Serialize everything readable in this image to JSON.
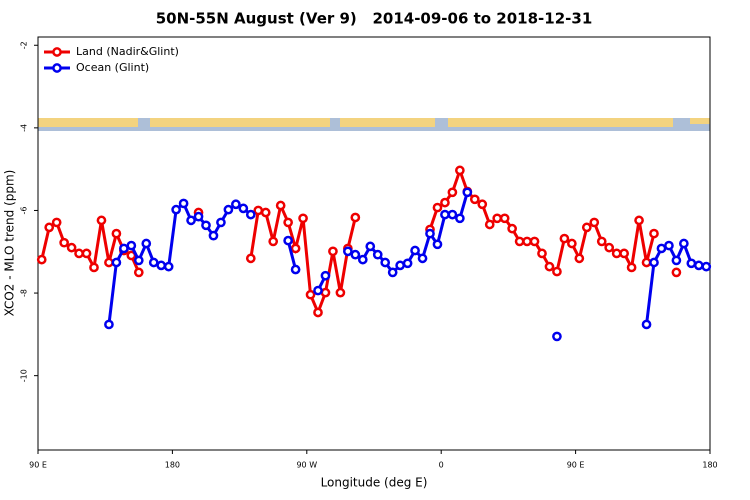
{
  "chart_data": {
    "type": "line",
    "title": "50N-55N August (Ver 9)   2014-09-06 to 2018-12-31",
    "xlabel": "Longitude (deg E)",
    "ylabel": "XCO2 - MLO trend (ppm)",
    "x": [
      92.5,
      97.5,
      102.5,
      107.5,
      112.5,
      117.5,
      122.5,
      127.5,
      132.5,
      137.5,
      142.5,
      147.5,
      152.5,
      157.5,
      162.5,
      167.5,
      172.5,
      177.5,
      182.5,
      187.5,
      192.5,
      197.5,
      202.5,
      207.5,
      212.5,
      217.5,
      222.5,
      227.5,
      232.5,
      237.5,
      242.5,
      247.5,
      252.5,
      257.5,
      262.5,
      267.5,
      272.5,
      277.5,
      282.5,
      287.5,
      292.5,
      297.5,
      302.5,
      307.5,
      312.5,
      317.5,
      322.5,
      327.5,
      332.5,
      337.5,
      342.5,
      347.5,
      352.5,
      357.5,
      362.5,
      367.5,
      372.5,
      377.5,
      382.5,
      387.5,
      392.5,
      397.5,
      402.5,
      407.5,
      412.5,
      417.5,
      422.5,
      427.5,
      432.5,
      437.5,
      442.5,
      447.5,
      452.5,
      457.5,
      462.5,
      467.5,
      472.5,
      477.5,
      482.5,
      487.5,
      492.5,
      497.5,
      502.5,
      507.5,
      512.5,
      517.5,
      522.5,
      527.5,
      532.5,
      537.5
    ],
    "series": [
      {
        "name": "Land (Nadir&Glint)",
        "color": "#ee0000",
        "values": [
          -7.19,
          -6.41,
          -6.29,
          -6.78,
          -6.9,
          -7.04,
          -7.04,
          -7.38,
          -6.24,
          -7.26,
          -6.56,
          -6.97,
          -7.09,
          -7.5,
          null,
          null,
          null,
          null,
          null,
          null,
          null,
          -6.05,
          null,
          null,
          null,
          null,
          null,
          null,
          -7.16,
          -6.0,
          -6.05,
          -6.75,
          -5.88,
          -6.29,
          -6.92,
          -6.19,
          -8.04,
          -8.47,
          -7.99,
          -6.99,
          -7.99,
          -6.92,
          -6.17,
          null,
          null,
          null,
          null,
          null,
          null,
          null,
          null,
          null,
          -6.46,
          -5.93,
          -5.81,
          -5.56,
          -5.03,
          -5.54,
          -5.73,
          -5.85,
          -6.34,
          -6.19,
          -6.19,
          -6.44,
          -6.75,
          -6.75,
          -6.75,
          -7.04,
          -7.36,
          -7.48,
          -6.68,
          -6.8,
          -7.16,
          -6.41,
          -6.29,
          -6.75,
          -6.9,
          -7.04,
          -7.04,
          -7.38,
          -6.24,
          -7.26,
          -6.56,
          null,
          null,
          -7.5,
          null,
          null,
          null,
          null
        ]
      },
      {
        "name": "Ocean (Glint)",
        "color": "#0000ee",
        "values": [
          null,
          null,
          null,
          null,
          null,
          null,
          null,
          null,
          null,
          -8.76,
          -7.26,
          -6.92,
          -6.85,
          -7.21,
          -6.8,
          -7.26,
          -7.33,
          -7.36,
          -5.98,
          -5.83,
          -6.24,
          -6.15,
          -6.36,
          -6.61,
          -6.29,
          -5.98,
          -5.85,
          -5.95,
          -6.1,
          null,
          null,
          null,
          null,
          -6.73,
          -7.43,
          null,
          null,
          -7.94,
          -7.58,
          null,
          null,
          -6.99,
          -7.07,
          -7.19,
          -6.87,
          -7.07,
          -7.26,
          -7.5,
          -7.33,
          -7.28,
          -6.97,
          -7.16,
          -6.56,
          -6.82,
          -6.1,
          -6.1,
          -6.19,
          -5.56,
          null,
          null,
          null,
          null,
          null,
          null,
          null,
          null,
          null,
          null,
          null,
          -9.05,
          null,
          null,
          null,
          null,
          null,
          null,
          null,
          null,
          null,
          null,
          null,
          -8.76,
          -7.26,
          -6.92,
          -6.85,
          -7.21,
          -6.8,
          -7.28,
          -7.33,
          -7.36
        ]
      }
    ],
    "xlim": [
      90,
      540
    ],
    "xticks": [
      {
        "value": 90,
        "label": "90 E"
      },
      180,
      {
        "value": 270,
        "label": "90 W"
      },
      {
        "value": 360,
        "label": "0"
      },
      {
        "value": 450,
        "label": "90 E"
      },
      {
        "value": 540,
        "label": "180"
      }
    ],
    "ylim": [
      -11.8,
      -1.8
    ],
    "yticks": [
      -10,
      -8,
      -6,
      -4,
      -2
    ],
    "legend": "top-left",
    "grid": false
  }
}
